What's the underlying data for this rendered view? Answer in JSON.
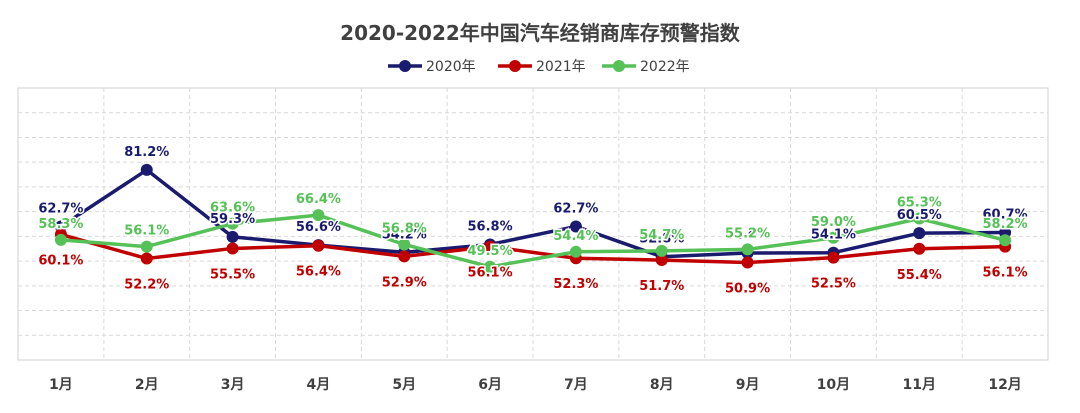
{
  "chart_data": {
    "type": "line",
    "title": "2020-2022年中国汽车经销商库存预警指数",
    "xlabel": "",
    "ylabel": "",
    "categories": [
      "1月",
      "2月",
      "3月",
      "4月",
      "5月",
      "6月",
      "7月",
      "8月",
      "9月",
      "10月",
      "11月",
      "12月"
    ],
    "ylim": [
      0,
      100
    ],
    "grid": true,
    "legend_position": "top",
    "series": [
      {
        "name": "2020年",
        "color": "#1a1a6e",
        "values": [
          62.7,
          81.2,
          59.3,
          56.6,
          54.2,
          56.8,
          62.7,
          52.8,
          54.0,
          54.1,
          60.5,
          60.7
        ],
        "labels": [
          "62.7%",
          "81.2%",
          "59.3%",
          "56.6%",
          "54.2%",
          "56.8%",
          "62.7%",
          "52.8%",
          "54.0%",
          "54.1%",
          "60.5%",
          "60.7%"
        ]
      },
      {
        "name": "2021年",
        "color": "#c00000",
        "values": [
          60.1,
          52.2,
          55.5,
          56.4,
          52.9,
          56.1,
          52.3,
          51.7,
          50.9,
          52.5,
          55.4,
          56.1
        ],
        "labels": [
          "60.1%",
          "52.2%",
          "55.5%",
          "56.4%",
          "52.9%",
          "56.1%",
          "52.3%",
          "51.7%",
          "50.9%",
          "52.5%",
          "55.4%",
          "56.1%"
        ]
      },
      {
        "name": "2022年",
        "color": "#55c157",
        "values": [
          58.3,
          56.1,
          63.6,
          66.4,
          56.8,
          49.5,
          54.4,
          54.7,
          55.2,
          59.0,
          65.3,
          58.2
        ],
        "labels": [
          "58.3%",
          "56.1%",
          "63.6%",
          "66.4%",
          "56.8%",
          "49.5%",
          "54.4%",
          "54.7%",
          "55.2%",
          "59.0%",
          "65.3%",
          "58.2%"
        ]
      }
    ]
  }
}
